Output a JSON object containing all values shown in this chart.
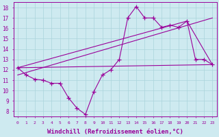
{
  "bg_color": "#ceeaf0",
  "line_color": "#990099",
  "grid_color": "#aad4db",
  "xlabel": "Windchill (Refroidissement éolien,°C)",
  "xlabel_fontsize": 6.5,
  "ylabel_values": [
    8,
    9,
    10,
    11,
    12,
    13,
    14,
    15,
    16,
    17,
    18
  ],
  "ylim": [
    7.5,
    18.5
  ],
  "xlim": [
    -0.5,
    23.5
  ],
  "series1_x": [
    0,
    1,
    2,
    3,
    4,
    5,
    6,
    7,
    8,
    9,
    10,
    11,
    12,
    13,
    14,
    15,
    16,
    17,
    18,
    19,
    20,
    21,
    22,
    23
  ],
  "series1_y": [
    12.2,
    11.5,
    11.1,
    11.0,
    10.7,
    10.7,
    9.3,
    8.3,
    7.7,
    9.9,
    11.5,
    12.0,
    13.0,
    17.0,
    18.1,
    17.0,
    17.0,
    16.1,
    16.3,
    16.1,
    16.7,
    13.0,
    13.0,
    12.5
  ],
  "series2_x": [
    0,
    23
  ],
  "series2_y": [
    12.2,
    12.5
  ],
  "series3_x": [
    0,
    20,
    23
  ],
  "series3_y": [
    12.2,
    16.7,
    12.5
  ],
  "series4_x": [
    0,
    23
  ],
  "series4_y": [
    11.5,
    17.0
  ]
}
